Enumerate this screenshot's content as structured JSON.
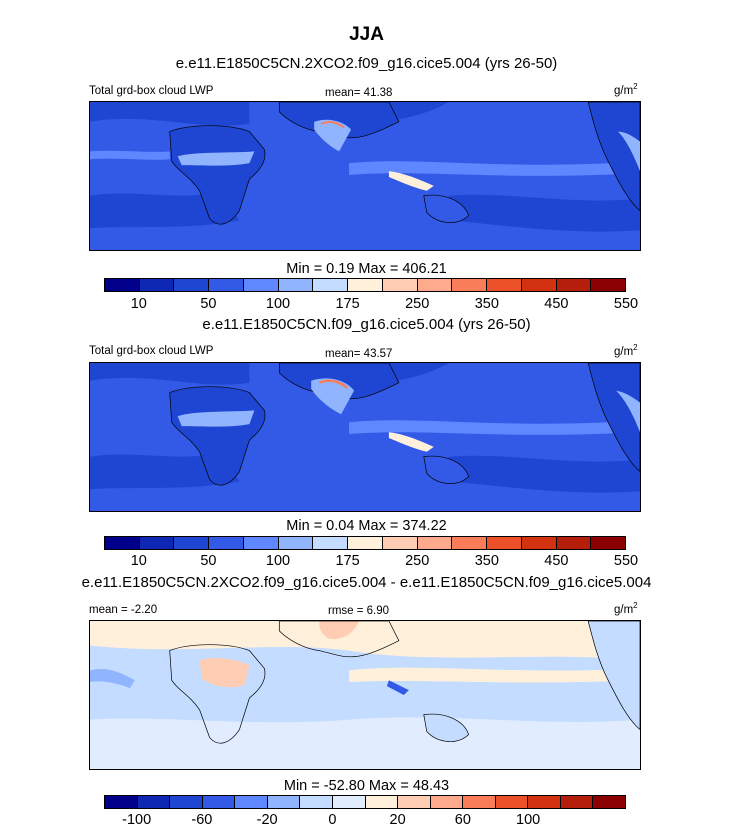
{
  "season": "JJA",
  "panels": [
    {
      "title": "e.e11.E1850C5CN.2XCO2.f09_g16.cice5.004 (yrs 26-50)",
      "left_label": "Total grd-box cloud LWP",
      "center_label": "mean=  41.38",
      "units_base": "g/m",
      "units_exp": "2",
      "minmax": "Min =   0.19 Max = 406.21",
      "colorbar_ticks": [
        "10",
        "50",
        "100",
        "175",
        "250",
        "350",
        "450",
        "550"
      ]
    },
    {
      "title": "e.e11.E1850C5CN.f09_g16.cice5.004 (yrs 26-50)",
      "left_label": "Total grd-box cloud LWP",
      "center_label": "mean=  43.57",
      "units_base": "g/m",
      "units_exp": "2",
      "minmax": "Min =   0.04 Max = 374.22",
      "colorbar_ticks": [
        "10",
        "50",
        "100",
        "175",
        "250",
        "350",
        "450",
        "550"
      ]
    },
    {
      "title": "e.e11.E1850C5CN.2XCO2.f09_g16.cice5.004 - e.e11.E1850C5CN.f09_g16.cice5.004",
      "left_label": "mean =  -2.20",
      "center_label": "rmse =   6.90",
      "units_base": "g/m",
      "units_exp": "2",
      "minmax": "Min = -52.80 Max =  48.43",
      "colorbar_ticks": [
        "-100",
        "-60",
        "-20",
        "0",
        "20",
        "60",
        "100"
      ]
    }
  ],
  "colors": {
    "abs_scale": [
      "#00008b",
      "#0f28b4",
      "#1e46d2",
      "#325ae6",
      "#5f87ff",
      "#91b4ff",
      "#c3dcff",
      "#fff0dc",
      "#ffcdb4",
      "#ffaa8c",
      "#fa7d5a",
      "#eb5028",
      "#d2320f",
      "#b41e0a",
      "#8b0000"
    ],
    "diff_scale": [
      "#00008b",
      "#0f28b4",
      "#1e46d2",
      "#325ae6",
      "#5f87ff",
      "#91b4ff",
      "#c3dcff",
      "#e1edff",
      "#fff0dc",
      "#ffcdb4",
      "#ffaa8c",
      "#fa7d5a",
      "#eb5028",
      "#d2320f",
      "#b41e0a",
      "#8b0000"
    ]
  }
}
